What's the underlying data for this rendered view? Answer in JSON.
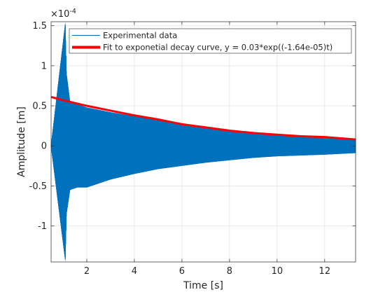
{
  "chart_data": {
    "type": "line",
    "title": "",
    "xlabel": "Time [s]",
    "ylabel": "Amplitude [m]",
    "y_exponent_label": "×10",
    "y_exponent_power": "-4",
    "xlim": [
      0.5,
      13.3
    ],
    "ylim": [
      -1.45,
      1.55
    ],
    "grid": true,
    "legend_placement": "top-right",
    "x_ticks": [
      2,
      4,
      6,
      8,
      10,
      12
    ],
    "x_tick_labels": [
      "2",
      "4",
      "6",
      "8",
      "10",
      "12"
    ],
    "y_ticks": [
      -1,
      -0.5,
      0,
      0.5,
      1,
      1.5
    ],
    "y_tick_labels": [
      "-1",
      "-0.5",
      "0",
      "0.5",
      "1",
      "1.5"
    ],
    "series": [
      {
        "name": "Experimental data",
        "color": "#0072BD",
        "style": "dense oscillation, impact at t=1.1 s then decaying envelope",
        "x": [
          0.5,
          1.1,
          1.15,
          1.3,
          1.6,
          2,
          3,
          4,
          5,
          6,
          7,
          8,
          9,
          10,
          11,
          12,
          13.3
        ],
        "y_upper": [
          0.02,
          1.55,
          0.9,
          0.55,
          0.52,
          0.48,
          0.42,
          0.37,
          0.32,
          0.28,
          0.24,
          0.2,
          0.17,
          0.14,
          0.12,
          0.11,
          0.09
        ],
        "y_lower": [
          -0.02,
          -1.45,
          -0.85,
          -0.55,
          -0.52,
          -0.52,
          -0.42,
          -0.35,
          -0.29,
          -0.25,
          -0.21,
          -0.18,
          -0.15,
          -0.13,
          -0.12,
          -0.11,
          -0.09
        ]
      },
      {
        "name": "Fit to exponetial decay curve, y = 0.03*exp((-1.64e-05)t)",
        "color": "#FF0000",
        "x": [
          0.5,
          1,
          2,
          3,
          4,
          5,
          6,
          7,
          8,
          9,
          10,
          11,
          12,
          13.3
        ],
        "y": [
          0.61,
          0.57,
          0.5,
          0.44,
          0.38,
          0.33,
          0.27,
          0.23,
          0.19,
          0.16,
          0.14,
          0.12,
          0.11,
          0.08
        ]
      }
    ]
  }
}
